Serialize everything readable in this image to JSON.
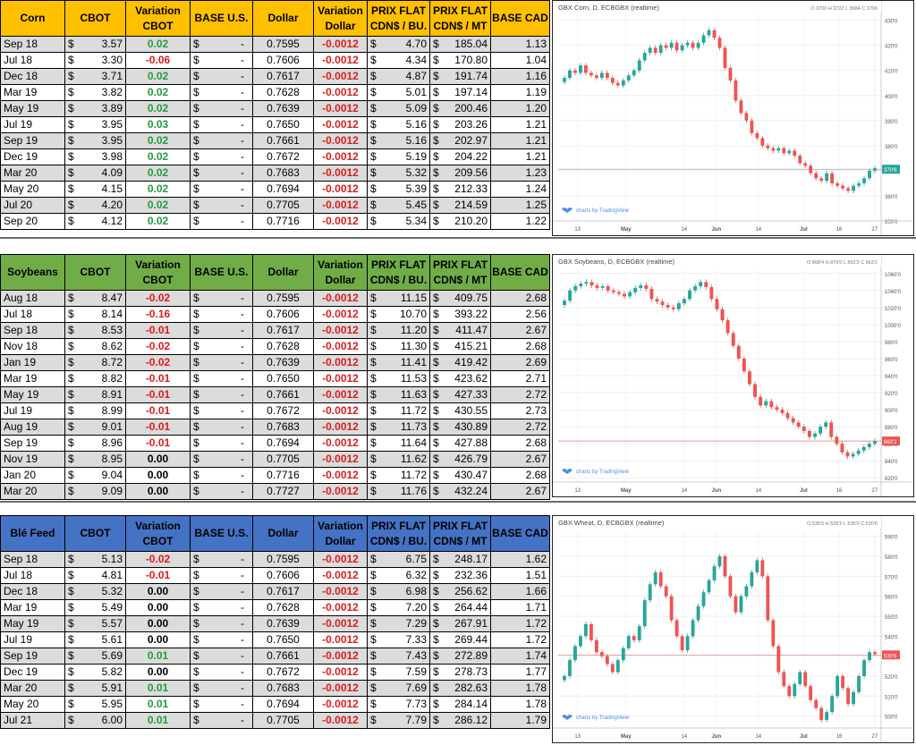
{
  "tables": [
    {
      "name": "corn",
      "header_color": "#ffc000",
      "headers": [
        "Corn",
        "CBOT",
        "Variation|CBOT",
        "BASE U.S.",
        "Dollar",
        "Variation|Dollar",
        "PRIX FLAT|CDN$ / BU.",
        "PRIX FLAT|CDN$ / MT",
        "BASE CAD"
      ],
      "rows": [
        [
          "Sep 18",
          "3.57",
          "0.02",
          "-",
          "0.7595",
          "-0.0012",
          "4.70",
          "185.04",
          "1.13"
        ],
        [
          "Jul 18",
          "3.30",
          "-0.06",
          "-",
          "0.7606",
          "-0.0012",
          "4.34",
          "170.80",
          "1.04"
        ],
        [
          "Dec 18",
          "3.71",
          "0.02",
          "-",
          "0.7617",
          "-0.0012",
          "4.87",
          "191.74",
          "1.16"
        ],
        [
          "Mar 19",
          "3.82",
          "0.02",
          "-",
          "0.7628",
          "-0.0012",
          "5.01",
          "197.14",
          "1.19"
        ],
        [
          "May 19",
          "3.89",
          "0.02",
          "-",
          "0.7639",
          "-0.0012",
          "5.09",
          "200.46",
          "1.20"
        ],
        [
          "Jul 19",
          "3.95",
          "0.03",
          "-",
          "0.7650",
          "-0.0012",
          "5.16",
          "203.26",
          "1.21"
        ],
        [
          "Sep 19",
          "3.95",
          "0.02",
          "-",
          "0.7661",
          "-0.0012",
          "5.16",
          "202.97",
          "1.21"
        ],
        [
          "Dec 19",
          "3.98",
          "0.02",
          "-",
          "0.7672",
          "-0.0012",
          "5.19",
          "204.22",
          "1.21"
        ],
        [
          "Mar 20",
          "4.09",
          "0.02",
          "-",
          "0.7683",
          "-0.0012",
          "5.32",
          "209.56",
          "1.23"
        ],
        [
          "May 20",
          "4.15",
          "0.02",
          "-",
          "0.7694",
          "-0.0012",
          "5.39",
          "212.33",
          "1.24"
        ],
        [
          "Jul 20",
          "4.20",
          "0.02",
          "-",
          "0.7705",
          "-0.0012",
          "5.45",
          "214.59",
          "1.25"
        ],
        [
          "Sep 20",
          "4.12",
          "0.02",
          "-",
          "0.7716",
          "-0.0012",
          "5.34",
          "210.20",
          "1.22"
        ]
      ]
    },
    {
      "name": "soybeans",
      "header_color": "#70ad47",
      "headers": [
        "Soybeans",
        "CBOT",
        "Variation|CBOT",
        "BASE U.S.",
        "Dollar",
        "Variation|Dollar",
        "PRIX FLAT|CDN$ / BU.",
        "PRIX FLAT|CDN$ / MT",
        "BASE CAD"
      ],
      "rows": [
        [
          "Aug 18",
          "8.47",
          "-0.02",
          "-",
          "0.7595",
          "-0.0012",
          "11.15",
          "409.75",
          "2.68"
        ],
        [
          "Jul 18",
          "8.14",
          "-0.16",
          "-",
          "0.7606",
          "-0.0012",
          "10.70",
          "393.22",
          "2.56"
        ],
        [
          "Sep 18",
          "8.53",
          "-0.01",
          "-",
          "0.7617",
          "-0.0012",
          "11.20",
          "411.47",
          "2.67"
        ],
        [
          "Nov 18",
          "8.62",
          "-0.02",
          "-",
          "0.7628",
          "-0.0012",
          "11.30",
          "415.21",
          "2.68"
        ],
        [
          "Jan 19",
          "8.72",
          "-0.02",
          "-",
          "0.7639",
          "-0.0012",
          "11.41",
          "419.42",
          "2.69"
        ],
        [
          "Mar 19",
          "8.82",
          "-0.01",
          "-",
          "0.7650",
          "-0.0012",
          "11.53",
          "423.62",
          "2.71"
        ],
        [
          "May 19",
          "8.91",
          "-0.01",
          "-",
          "0.7661",
          "-0.0012",
          "11.63",
          "427.33",
          "2.72"
        ],
        [
          "Jul 19",
          "8.99",
          "-0.01",
          "-",
          "0.7672",
          "-0.0012",
          "11.72",
          "430.55",
          "2.73"
        ],
        [
          "Aug 19",
          "9.01",
          "-0.01",
          "-",
          "0.7683",
          "-0.0012",
          "11.73",
          "430.89",
          "2.72"
        ],
        [
          "Sep 19",
          "8.96",
          "-0.01",
          "-",
          "0.7694",
          "-0.0012",
          "11.64",
          "427.88",
          "2.68"
        ],
        [
          "Nov 19",
          "8.95",
          "0.00",
          "-",
          "0.7705",
          "-0.0012",
          "11.62",
          "426.79",
          "2.67"
        ],
        [
          "Jan 20",
          "9.04",
          "0.00",
          "-",
          "0.7716",
          "-0.0012",
          "11.72",
          "430.47",
          "2.68"
        ],
        [
          "Mar 20",
          "9.09",
          "0.00",
          "-",
          "0.7727",
          "-0.0012",
          "11.76",
          "432.24",
          "2.67"
        ]
      ]
    },
    {
      "name": "wheat",
      "header_color": "#4472c4",
      "headers": [
        "Blé Feed",
        "CBOT",
        "Variation|CBOT",
        "BASE U.S.",
        "Dollar",
        "Variation|Dollar",
        "PRIX FLAT|CDN$ / BU.",
        "PRIX FLAT|CDN$ / MT",
        "BASE CAD"
      ],
      "rows": [
        [
          "Sep 18",
          "5.13",
          "-0.02",
          "-",
          "0.7595",
          "-0.0012",
          "6.75",
          "248.17",
          "1.62"
        ],
        [
          "Jul 18",
          "4.81",
          "-0.01",
          "-",
          "0.7606",
          "-0.0012",
          "6.32",
          "232.36",
          "1.51"
        ],
        [
          "Dec 18",
          "5.32",
          "0.00",
          "-",
          "0.7617",
          "-0.0012",
          "6.98",
          "256.62",
          "1.66"
        ],
        [
          "Mar 19",
          "5.49",
          "0.00",
          "-",
          "0.7628",
          "-0.0012",
          "7.20",
          "264.44",
          "1.71"
        ],
        [
          "May 19",
          "5.57",
          "0.00",
          "-",
          "0.7639",
          "-0.0012",
          "7.29",
          "267.91",
          "1.72"
        ],
        [
          "Jul 19",
          "5.61",
          "0.00",
          "-",
          "0.7650",
          "-0.0012",
          "7.33",
          "269.44",
          "1.72"
        ],
        [
          "Sep 19",
          "5.69",
          "0.01",
          "-",
          "0.7661",
          "-0.0012",
          "7.43",
          "272.89",
          "1.74"
        ],
        [
          "Dec 19",
          "5.82",
          "0.00",
          "-",
          "0.7672",
          "-0.0012",
          "7.59",
          "278.73",
          "1.77"
        ],
        [
          "Mar 20",
          "5.91",
          "0.01",
          "-",
          "0.7683",
          "-0.0012",
          "7.69",
          "282.63",
          "1.78"
        ],
        [
          "May 20",
          "5.95",
          "0.01",
          "-",
          "0.7694",
          "-0.0012",
          "7.73",
          "284.14",
          "1.78"
        ],
        [
          "Jul 21",
          "6.00",
          "0.01",
          "-",
          "0.7705",
          "-0.0012",
          "7.79",
          "286.12",
          "1.79"
        ]
      ]
    }
  ],
  "currency_symbol": "$",
  "colors": {
    "up": "#26a69a",
    "down": "#ef5350",
    "positive_text": "#1e9e3a",
    "negative_text": "#e01b1b"
  },
  "chart_data": [
    {
      "type": "candlestick",
      "title": "GBX Corn, D, ECBGBX (realtime)",
      "ohlc_text": "O 3700 H 3722 L 3684 C 3706",
      "last_label": "370'6",
      "attribution": "charts by TradingView",
      "ylim": [
        350,
        432
      ],
      "yticks": [
        "430'0",
        "420'0",
        "410'0",
        "400'0",
        "390'0",
        "380'0",
        "370'0",
        "360'0",
        "350'0"
      ],
      "ytick_values": [
        430,
        420,
        410,
        400,
        390,
        380,
        370,
        360,
        350
      ],
      "xticks": [
        "13",
        "May",
        "14",
        "Jun",
        "14",
        "Jul",
        "16",
        "27"
      ],
      "last": 370.6,
      "closes": [
        407,
        410,
        409,
        412,
        409,
        408,
        407,
        409,
        407,
        405,
        404,
        406,
        408,
        410,
        414,
        417,
        419,
        417,
        420,
        419,
        421,
        418,
        420,
        421,
        419,
        421,
        424,
        426,
        423,
        419,
        411,
        406,
        398,
        393,
        390,
        385,
        383,
        380,
        379,
        378,
        379,
        377,
        378,
        376,
        373,
        372,
        369,
        367,
        366,
        369,
        365,
        364,
        363,
        362,
        364,
        365,
        367,
        370,
        371
      ]
    },
    {
      "type": "candlestick",
      "title": "GBX Soybeans, D, ECBGBX (realtime)",
      "ohlc_text": "O 868'4 H 870'0 L 862'2 C 863'2",
      "last_label": "863'2",
      "attribution": "charts by TradingView",
      "ylim": [
        815,
        1065
      ],
      "yticks": [
        "1060'0",
        "1040'0",
        "1020'0",
        "1000'0",
        "980'0",
        "960'0",
        "940'0",
        "920'0",
        "900'0",
        "880'0",
        "860'0",
        "840'0",
        "820'0"
      ],
      "ytick_values": [
        1060,
        1040,
        1020,
        1000,
        980,
        960,
        940,
        920,
        900,
        880,
        860,
        840,
        820
      ],
      "xticks": [
        "13",
        "May",
        "14",
        "Jun",
        "14",
        "Jul",
        "16",
        "27"
      ],
      "last": 863.2,
      "closes": [
        1028,
        1040,
        1045,
        1048,
        1050,
        1046,
        1043,
        1045,
        1040,
        1038,
        1036,
        1033,
        1038,
        1043,
        1046,
        1042,
        1030,
        1027,
        1023,
        1020,
        1018,
        1025,
        1030,
        1040,
        1045,
        1050,
        1044,
        1030,
        1018,
        1005,
        990,
        975,
        960,
        945,
        930,
        915,
        905,
        910,
        903,
        900,
        896,
        890,
        885,
        880,
        875,
        868,
        872,
        880,
        885,
        868,
        860,
        850,
        845,
        848,
        852,
        856,
        860,
        863
      ]
    },
    {
      "type": "candlestick",
      "title": "GBX Wheat, D, ECBGBX (realtime)",
      "ohlc_text": "O 535'6 H 539'2 L 530'0 C 530'6",
      "last_label": "530'6",
      "attribution": "charts by TradingView",
      "ylim": [
        494,
        593
      ],
      "yticks": [
        "590'0",
        "580'0",
        "570'0",
        "560'0",
        "550'0",
        "540'0",
        "530'0",
        "520'0",
        "510'0",
        "500'0"
      ],
      "ytick_values": [
        590,
        580,
        570,
        560,
        550,
        540,
        530,
        520,
        510,
        500
      ],
      "xticks": [
        "13",
        "May",
        "14",
        "Jun",
        "14",
        "Jul",
        "16",
        "27"
      ],
      "last": 530.6,
      "closes": [
        520,
        528,
        535,
        540,
        546,
        538,
        532,
        530,
        526,
        522,
        528,
        534,
        540,
        538,
        545,
        558,
        566,
        572,
        565,
        560,
        548,
        540,
        533,
        540,
        548,
        555,
        562,
        568,
        575,
        580,
        570,
        560,
        552,
        560,
        565,
        572,
        578,
        570,
        548,
        535,
        522,
        515,
        510,
        516,
        522,
        515,
        508,
        504,
        498,
        502,
        510,
        520,
        514,
        506,
        512,
        520,
        528,
        532,
        531
      ]
    }
  ]
}
